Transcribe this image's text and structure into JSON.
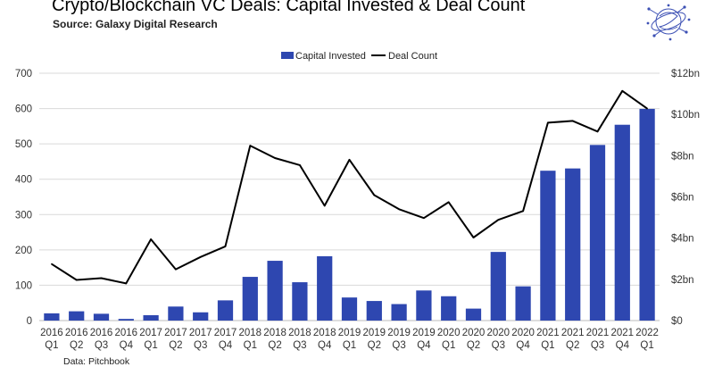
{
  "title": "Crypto/Blockchain VC Deals: Capital Invested & Deal Count",
  "subtitle": "Source: Galaxy Digital Research",
  "footer": "Data: Pitchbook",
  "logo": {
    "icon": "galaxy-globe-logo",
    "color": "#3c50b4"
  },
  "colors": {
    "bar": "#2e47b0",
    "line": "#000000",
    "grid": "#d9d9d9"
  },
  "chart_data": {
    "type": "bar",
    "categories": [
      [
        "2016",
        "Q1"
      ],
      [
        "2016",
        "Q2"
      ],
      [
        "2016",
        "Q3"
      ],
      [
        "2016",
        "Q4"
      ],
      [
        "2017",
        "Q1"
      ],
      [
        "2017",
        "Q2"
      ],
      [
        "2017",
        "Q3"
      ],
      [
        "2017",
        "Q4"
      ],
      [
        "2018",
        "Q1"
      ],
      [
        "2018",
        "Q2"
      ],
      [
        "2018",
        "Q3"
      ],
      [
        "2018",
        "Q4"
      ],
      [
        "2019",
        "Q1"
      ],
      [
        "2019",
        "Q2"
      ],
      [
        "2019",
        "Q3"
      ],
      [
        "2019",
        "Q4"
      ],
      [
        "2020",
        "Q1"
      ],
      [
        "2020",
        "Q2"
      ],
      [
        "2020",
        "Q3"
      ],
      [
        "2020",
        "Q4"
      ],
      [
        "2021",
        "Q1"
      ],
      [
        "2021",
        "Q2"
      ],
      [
        "2021",
        "Q3"
      ],
      [
        "2021",
        "Q4"
      ],
      [
        "2022",
        "Q1"
      ]
    ],
    "series": [
      {
        "name": "Capital Invested",
        "type": "bar",
        "axis": "right",
        "unit": "bn",
        "values": [
          0.35,
          0.45,
          0.33,
          0.08,
          0.26,
          0.68,
          0.4,
          0.98,
          2.12,
          2.9,
          1.86,
          3.12,
          1.12,
          0.95,
          0.8,
          1.46,
          1.18,
          0.58,
          3.33,
          1.66,
          7.27,
          7.38,
          8.52,
          9.5,
          10.27
        ]
      },
      {
        "name": "Deal Count",
        "type": "line",
        "axis": "left",
        "values": [
          160,
          115,
          120,
          105,
          230,
          145,
          180,
          210,
          495,
          460,
          440,
          325,
          455,
          355,
          315,
          290,
          335,
          235,
          285,
          310,
          560,
          565,
          535,
          650,
          600
        ]
      }
    ],
    "y_left": {
      "min": 0,
      "max": 700,
      "ticks": [
        0,
        100,
        200,
        300,
        400,
        500,
        600,
        700
      ]
    },
    "y_right": {
      "min": 0,
      "max": 12,
      "ticks": [
        "$0",
        "$2bn",
        "$4bn",
        "$6bn",
        "$8bn",
        "$10bn",
        "$12bn"
      ]
    },
    "grid": true,
    "legend_position": "top-center"
  }
}
